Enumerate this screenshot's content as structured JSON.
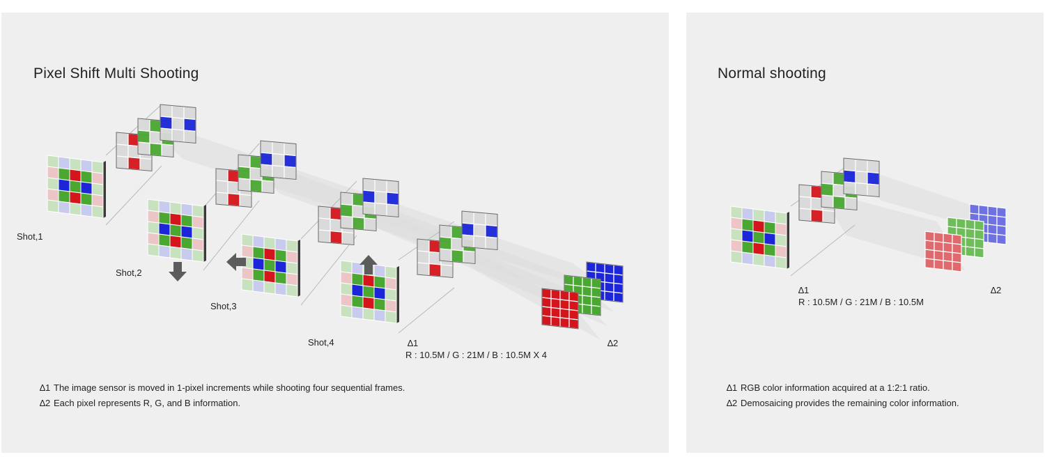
{
  "left_panel": {
    "title": "Pixel Shift Multi Shooting",
    "shots": [
      "Shot,1",
      "Shot,2",
      "Shot,3",
      "Shot,4"
    ],
    "marker1": "∆1",
    "marker2": "∆2",
    "ratio_text": "R : 10.5M / G : 21M / B : 10.5M X 4",
    "notes": [
      {
        "mark": "∆1",
        "text": "The image sensor is moved in 1-pixel increments while shooting four sequential frames."
      },
      {
        "mark": "∆2",
        "text": "Each pixel represents R, G, and B information."
      }
    ]
  },
  "right_panel": {
    "title": "Normal shooting",
    "marker1": "∆1",
    "marker2": "∆2",
    "ratio_text": "R : 10.5M / G : 21M / B : 10.5M",
    "notes": [
      {
        "mark": "∆1",
        "text": "RGB color information acquired at a 1:2:1 ratio."
      },
      {
        "mark": "∆2",
        "text": "Demosaicing provides the remaining color information."
      }
    ]
  },
  "colors": {
    "red": "#d4161c",
    "green": "#4aa832",
    "blue": "#1c26d8",
    "panel_bg": "#efefef",
    "arrow": "#5c5c5c"
  }
}
